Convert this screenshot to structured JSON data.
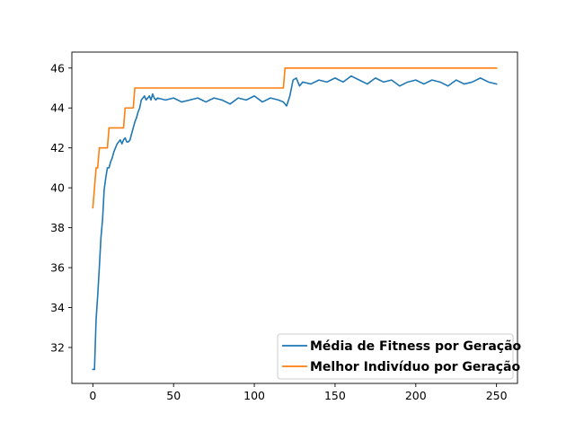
{
  "chart_data": {
    "type": "line",
    "title": "",
    "xlabel": "",
    "ylabel": "",
    "xlim": [
      -13,
      263
    ],
    "ylim": [
      30.2,
      46.8
    ],
    "xticks": [
      0,
      50,
      100,
      150,
      200,
      250
    ],
    "yticks": [
      32,
      34,
      36,
      38,
      40,
      42,
      44,
      46
    ],
    "grid": false,
    "legend_position": "lower-right",
    "series": [
      {
        "name": "Média de Fitness por Geração",
        "color": "#1f77b4",
        "x": [
          0,
          1,
          2,
          3,
          4,
          5,
          6,
          7,
          8,
          9,
          10,
          11,
          12,
          13,
          14,
          15,
          16,
          17,
          18,
          19,
          20,
          21,
          22,
          23,
          24,
          25,
          26,
          27,
          28,
          29,
          30,
          31,
          32,
          33,
          34,
          35,
          36,
          37,
          38,
          39,
          40,
          45,
          50,
          55,
          60,
          65,
          70,
          75,
          80,
          85,
          90,
          95,
          100,
          105,
          110,
          115,
          118,
          120,
          122,
          124,
          126,
          128,
          130,
          135,
          140,
          145,
          150,
          155,
          160,
          165,
          170,
          175,
          180,
          185,
          190,
          195,
          200,
          205,
          210,
          215,
          220,
          225,
          230,
          235,
          240,
          245,
          250
        ],
        "y": [
          30.9,
          30.9,
          33.4,
          34.6,
          36.0,
          37.5,
          38.4,
          39.9,
          40.5,
          41.0,
          41.0,
          41.3,
          41.5,
          41.8,
          42.0,
          42.2,
          42.3,
          42.4,
          42.2,
          42.4,
          42.5,
          42.3,
          42.3,
          42.4,
          42.7,
          43.0,
          43.3,
          43.5,
          43.8,
          44.0,
          44.4,
          44.5,
          44.6,
          44.4,
          44.5,
          44.6,
          44.4,
          44.7,
          44.5,
          44.4,
          44.5,
          44.4,
          44.5,
          44.3,
          44.4,
          44.5,
          44.3,
          44.5,
          44.4,
          44.2,
          44.5,
          44.4,
          44.6,
          44.3,
          44.5,
          44.4,
          44.3,
          44.1,
          44.6,
          45.4,
          45.5,
          45.1,
          45.3,
          45.2,
          45.4,
          45.3,
          45.5,
          45.3,
          45.6,
          45.4,
          45.2,
          45.5,
          45.3,
          45.4,
          45.1,
          45.3,
          45.4,
          45.2,
          45.4,
          45.3,
          45.1,
          45.4,
          45.2,
          45.3,
          45.5,
          45.3,
          45.2
        ]
      },
      {
        "name": "Melhor Indivíduo por Geração",
        "color": "#ff7f0e",
        "x": [
          0,
          1,
          2,
          3,
          4,
          5,
          6,
          7,
          8,
          9,
          10,
          11,
          12,
          13,
          14,
          15,
          16,
          17,
          18,
          19,
          20,
          21,
          22,
          23,
          24,
          25,
          26,
          27,
          28,
          29,
          30,
          40,
          50,
          60,
          70,
          80,
          90,
          100,
          110,
          117,
          118,
          119,
          120,
          130,
          140,
          150,
          160,
          170,
          180,
          190,
          200,
          210,
          220,
          230,
          240,
          250
        ],
        "y": [
          39,
          40,
          41,
          41,
          42,
          42,
          42,
          42,
          42,
          42,
          43,
          43,
          43,
          43,
          43,
          43,
          43,
          43,
          43,
          43,
          44,
          44,
          44,
          44,
          44,
          44,
          45,
          45,
          45,
          45,
          45,
          45,
          45,
          45,
          45,
          45,
          45,
          45,
          45,
          45,
          45,
          46,
          46,
          46,
          46,
          46,
          46,
          46,
          46,
          46,
          46,
          46,
          46,
          46,
          46,
          46
        ]
      }
    ]
  }
}
